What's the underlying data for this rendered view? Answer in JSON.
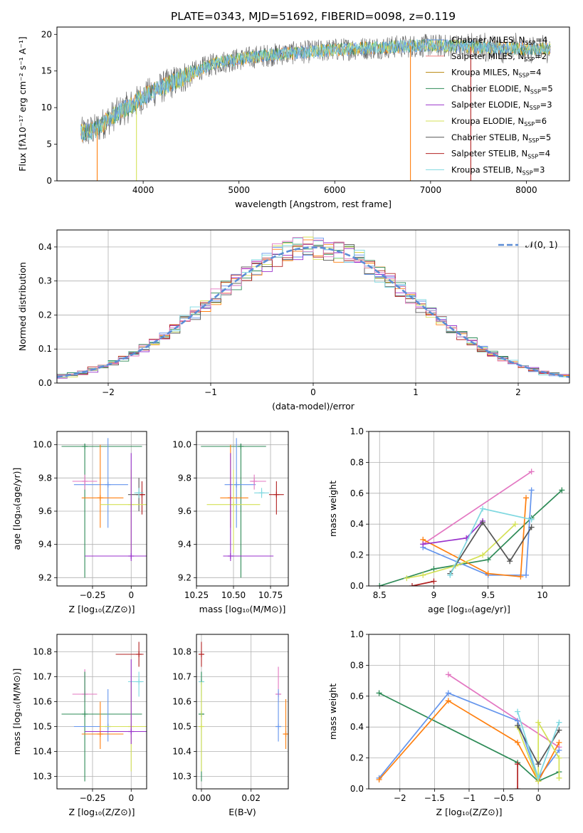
{
  "figure": {
    "title": "PLATE=0343, MJD=51692, FIBERID=0098, z=0.119"
  },
  "colors": {
    "chabrier_miles": "#6495ed",
    "salpeter_miles": "#f08080",
    "kroupa_miles": "#b8860b",
    "chabrier_elodie": "#2e8b57",
    "salpeter_elodie": "#9932cc",
    "kroupa_elodie": "#d4e157",
    "chabrier_stelib": "#555555",
    "salpeter_stelib": "#b22222",
    "kroupa_stelib": "#7fd8e0",
    "orange": "#ff7f0e",
    "pink": "#e377c2",
    "gaussian": "#5b8dd6"
  },
  "chart_data": [
    {
      "type": "line",
      "name": "spectrum",
      "xlabel": "wavelength [Angstrom, rest frame]",
      "ylabel": "Flux [fλ10⁻¹⁷ erg cm⁻² s⁻¹ A⁻¹]",
      "xlim": [
        3100,
        8450
      ],
      "ylim": [
        0,
        21
      ],
      "xticks": [
        4000,
        5000,
        6000,
        7000,
        8000
      ],
      "yticks": [
        0,
        5,
        10,
        15,
        20
      ],
      "grid": false,
      "legend_position": "top-right",
      "legend": [
        "Chabrier MILES, N_SSP=4",
        "Salpeter MILES, N_SSP=2",
        "Kroupa MILES, N_SSP=4",
        "Chabrier ELODIE, N_SSP=5",
        "Salpeter ELODIE, N_SSP=3",
        "Kroupa ELODIE, N_SSP=6",
        "Chabrier STELIB, N_SSP=5",
        "Salpeter STELIB, N_SSP=4",
        "Kroupa STELIB, N_SSP=3"
      ],
      "continuum": {
        "x": [
          3350,
          3500,
          3700,
          3900,
          4000,
          4200,
          4400,
          4600,
          4800,
          5000,
          5200,
          5500,
          5800,
          6000,
          6300,
          6600,
          7000,
          7400,
          7800,
          8200
        ],
        "y": [
          6.5,
          7.0,
          9.0,
          10.5,
          11.5,
          12.8,
          14.0,
          15.3,
          16.2,
          16.6,
          17.0,
          17.4,
          17.7,
          17.9,
          18.1,
          18.3,
          18.5,
          18.3,
          18.1,
          18.0
        ]
      },
      "spikes": [
        {
          "x": 3520,
          "y": 0
        },
        {
          "x": 3930,
          "y": 0
        },
        {
          "x": 6790,
          "y": 0
        },
        {
          "x": 7420,
          "y": 0
        }
      ]
    },
    {
      "type": "line",
      "name": "residual-distribution",
      "xlabel": "(data-model)/error",
      "ylabel": "Normed distribution",
      "xlim": [
        -2.5,
        2.5
      ],
      "ylim": [
        0,
        0.45
      ],
      "xticks": [
        -2,
        -1,
        0,
        1,
        2
      ],
      "yticks": [
        0.0,
        0.1,
        0.2,
        0.3,
        0.4
      ],
      "grid": true,
      "legend_position": "top-right",
      "legend": [
        "𝒩(0, 1)"
      ],
      "bin_width": 0.1,
      "bin_start": -2.5
    },
    {
      "type": "scatter",
      "name": "age-vs-Z",
      "xlabel": "Z [log₁₀(Z/Z⊙)]",
      "ylabel": "age  [log₁₀(age/yr)]",
      "xlim": [
        -0.48,
        0.1
      ],
      "ylim": [
        9.15,
        10.08
      ],
      "xticks": [
        -0.25,
        0.0
      ],
      "yticks": [
        9.2,
        9.4,
        9.6,
        9.8,
        10.0
      ],
      "grid": true,
      "points": [
        {
          "c": "chabrier_elodie",
          "x": -0.3,
          "y": 9.99,
          "xe": [
            -0.45,
            0.07
          ],
          "ye": [
            9.2,
            10.0
          ]
        },
        {
          "c": "chabrier_miles",
          "x": -0.15,
          "y": 9.76,
          "xe": [
            -0.37,
            -0.02
          ],
          "ye": [
            9.5,
            10.04
          ]
        },
        {
          "c": "pink",
          "x": -0.3,
          "y": 9.78,
          "xe": [
            -0.38,
            -0.22
          ],
          "ye": [
            9.73,
            9.82
          ]
        },
        {
          "c": "orange",
          "x": -0.2,
          "y": 9.68,
          "xe": [
            -0.32,
            -0.05
          ],
          "ye": [
            9.5,
            10.0
          ]
        },
        {
          "c": "chabrier_stelib",
          "x": 0.05,
          "y": 9.7,
          "xe": [
            -0.02,
            0.09
          ],
          "ye": [
            9.6,
            9.8
          ]
        },
        {
          "c": "salpeter_stelib",
          "x": 0.07,
          "y": 9.7,
          "xe": [
            0.05,
            0.09
          ],
          "ye": [
            9.58,
            9.78
          ]
        },
        {
          "c": "kroupa_elodie",
          "x": 0.0,
          "y": 9.64,
          "xe": [
            -0.2,
            0.1
          ],
          "ye": [
            9.35,
            9.85
          ]
        },
        {
          "c": "salpeter_elodie",
          "x": 0.0,
          "y": 9.33,
          "xe": [
            -0.3,
            0.1
          ],
          "ye": [
            9.3,
            9.95
          ]
        },
        {
          "c": "kroupa_stelib",
          "x": 0.05,
          "y": 9.71,
          "xe": [
            0.02,
            0.08
          ],
          "ye": [
            9.68,
            9.74
          ]
        }
      ]
    },
    {
      "type": "scatter",
      "name": "age-vs-mass",
      "xlabel": "mass [log₁₀(M/M⊙)]",
      "ylabel": "",
      "xlim": [
        10.25,
        10.87
      ],
      "ylim": [
        9.15,
        10.08
      ],
      "xticks": [
        10.25,
        10.5,
        10.75
      ],
      "xticklabels": [
        "10.25",
        "10.50",
        "10.75"
      ],
      "yticks": [
        9.2,
        9.4,
        9.6,
        9.8,
        10.0
      ],
      "grid": true,
      "points": [
        {
          "c": "chabrier_elodie",
          "x": 10.55,
          "y": 9.99,
          "xe": [
            10.28,
            10.72
          ],
          "ye": [
            9.2,
            10.0
          ]
        },
        {
          "c": "chabrier_miles",
          "x": 10.52,
          "y": 9.76,
          "xe": [
            10.44,
            10.65
          ],
          "ye": [
            9.5,
            10.04
          ]
        },
        {
          "c": "pink",
          "x": 10.64,
          "y": 9.78,
          "xe": [
            10.61,
            10.72
          ],
          "ye": [
            9.73,
            9.82
          ]
        },
        {
          "c": "orange",
          "x": 10.48,
          "y": 9.68,
          "xe": [
            10.41,
            10.6
          ],
          "ye": [
            9.5,
            10.0
          ]
        },
        {
          "c": "kroupa_elodie",
          "x": 10.5,
          "y": 9.64,
          "xe": [
            10.32,
            10.68
          ],
          "ye": [
            9.35,
            9.85
          ]
        },
        {
          "c": "salpeter_elodie",
          "x": 10.48,
          "y": 9.33,
          "xe": [
            10.43,
            10.77
          ],
          "ye": [
            9.3,
            9.95
          ]
        },
        {
          "c": "kroupa_stelib",
          "x": 10.69,
          "y": 9.71,
          "xe": [
            10.64,
            10.74
          ],
          "ye": [
            9.68,
            9.74
          ]
        },
        {
          "c": "salpeter_stelib",
          "x": 10.79,
          "y": 9.7,
          "xe": [
            10.74,
            10.84
          ],
          "ye": [
            9.58,
            9.78
          ]
        }
      ]
    },
    {
      "type": "line",
      "name": "mass-weight-vs-age",
      "xlabel": "age  [log₁₀(age/yr)]",
      "ylabel": "mass weight",
      "xlim": [
        8.4,
        10.25
      ],
      "ylim": [
        0,
        1.0
      ],
      "xticks": [
        8.5,
        9.0,
        9.5,
        10.0
      ],
      "yticks": [
        0.0,
        0.2,
        0.4,
        0.6,
        0.8,
        1.0
      ],
      "grid": true,
      "series": [
        {
          "c": "pink",
          "x": [
            8.9,
            9.9
          ],
          "y": [
            0.27,
            0.74
          ]
        },
        {
          "c": "chabrier_elodie",
          "x": [
            8.5,
            9.0,
            9.5,
            9.9,
            10.18
          ],
          "y": [
            0.0,
            0.11,
            0.17,
            0.44,
            0.62
          ]
        },
        {
          "c": "chabrier_miles",
          "x": [
            8.9,
            9.5,
            9.85,
            9.9
          ],
          "y": [
            0.25,
            0.07,
            0.07,
            0.62
          ]
        },
        {
          "c": "orange",
          "x": [
            8.9,
            9.5,
            9.8,
            9.85
          ],
          "y": [
            0.3,
            0.08,
            0.06,
            0.57
          ]
        },
        {
          "c": "salpeter_elodie",
          "x": [
            8.9,
            9.3,
            9.45
          ],
          "y": [
            0.27,
            0.31,
            0.42
          ]
        },
        {
          "c": "kroupa_elodie",
          "x": [
            8.75,
            8.9,
            9.2,
            9.45,
            9.75
          ],
          "y": [
            0.05,
            0.07,
            0.13,
            0.2,
            0.4
          ]
        },
        {
          "c": "chabrier_stelib",
          "x": [
            9.15,
            9.45,
            9.7,
            9.9
          ],
          "y": [
            0.08,
            0.41,
            0.16,
            0.38
          ]
        },
        {
          "c": "kroupa_stelib",
          "x": [
            9.15,
            9.45,
            9.9
          ],
          "y": [
            0.07,
            0.5,
            0.43
          ]
        },
        {
          "c": "salpeter_stelib",
          "x": [
            8.8,
            9.0
          ],
          "y": [
            0.0,
            0.03
          ]
        }
      ]
    },
    {
      "type": "scatter",
      "name": "mass-vs-Z",
      "xlabel": "Z [log₁₀(Z/Z⊙)]",
      "ylabel": "mass [log₁₀(M/M⊙)]",
      "xlim": [
        -0.48,
        0.1
      ],
      "ylim": [
        10.25,
        10.87
      ],
      "xticks": [
        -0.25,
        0.0
      ],
      "yticks": [
        10.3,
        10.4,
        10.5,
        10.6,
        10.7,
        10.8
      ],
      "grid": true,
      "points": [
        {
          "c": "salpeter_stelib",
          "x": 0.05,
          "y": 10.79,
          "xe": [
            -0.1,
            0.08
          ],
          "ye": [
            10.74,
            10.84
          ]
        },
        {
          "c": "pink",
          "x": -0.3,
          "y": 10.63,
          "xe": [
            -0.38,
            -0.22
          ],
          "ye": [
            10.6,
            10.73
          ]
        },
        {
          "c": "kroupa_stelib",
          "x": 0.05,
          "y": 10.68,
          "xe": [
            -0.02,
            0.08
          ],
          "ye": [
            10.62,
            10.72
          ]
        },
        {
          "c": "chabrier_elodie",
          "x": -0.3,
          "y": 10.55,
          "xe": [
            -0.45,
            0.07
          ],
          "ye": [
            10.28,
            10.72
          ]
        },
        {
          "c": "chabrier_miles",
          "x": -0.15,
          "y": 10.5,
          "xe": [
            -0.37,
            -0.02
          ],
          "ye": [
            10.44,
            10.65
          ]
        },
        {
          "c": "orange",
          "x": -0.2,
          "y": 10.47,
          "xe": [
            -0.32,
            -0.05
          ],
          "ye": [
            10.41,
            10.6
          ]
        },
        {
          "c": "kroupa_elodie",
          "x": 0.0,
          "y": 10.5,
          "xe": [
            -0.2,
            0.1
          ],
          "ye": [
            10.32,
            10.68
          ]
        },
        {
          "c": "salpeter_elodie",
          "x": 0.0,
          "y": 10.48,
          "xe": [
            -0.3,
            0.1
          ],
          "ye": [
            10.43,
            10.77
          ]
        }
      ]
    },
    {
      "type": "scatter",
      "name": "mass-vs-ebv",
      "xlabel": "E(B-V)",
      "ylabel": "",
      "xlim": [
        -0.002,
        0.035
      ],
      "ylim": [
        10.25,
        10.87
      ],
      "xticks": [
        0.0,
        0.02
      ],
      "xticklabels": [
        "0.00",
        "0.02"
      ],
      "yticks": [
        10.3,
        10.4,
        10.5,
        10.6,
        10.7,
        10.8
      ],
      "grid": true,
      "points": [
        {
          "c": "salpeter_stelib",
          "x": 0.0,
          "y": 10.79,
          "ye": [
            10.74,
            10.84
          ]
        },
        {
          "c": "kroupa_stelib",
          "x": 0.0,
          "y": 10.68,
          "ye": [
            10.62,
            10.72
          ]
        },
        {
          "c": "chabrier_elodie",
          "x": 0.0,
          "y": 10.55,
          "ye": [
            10.28,
            10.72
          ]
        },
        {
          "c": "kroupa_elodie",
          "x": 0.0,
          "y": 10.5,
          "ye": [
            10.32,
            10.68
          ]
        },
        {
          "c": "pink",
          "x": 0.031,
          "y": 10.63,
          "ye": [
            10.6,
            10.74
          ]
        },
        {
          "c": "chabrier_miles",
          "x": 0.031,
          "y": 10.5,
          "ye": [
            10.44,
            10.65
          ]
        },
        {
          "c": "orange",
          "x": 0.034,
          "y": 10.47,
          "ye": [
            10.41,
            10.61
          ]
        }
      ]
    },
    {
      "type": "line",
      "name": "mass-weight-vs-Z",
      "xlabel": "Z [log₁₀(Z/Z⊙)]",
      "ylabel": "mass weight",
      "xlim": [
        -2.45,
        0.45
      ],
      "ylim": [
        0,
        1.0
      ],
      "xticks": [
        -2.0,
        -1.5,
        -1.0,
        -0.5,
        0.0
      ],
      "yticks": [
        0.0,
        0.2,
        0.4,
        0.6,
        0.8,
        1.0
      ],
      "grid": true,
      "series": [
        {
          "c": "pink",
          "x": [
            -1.3,
            0.3
          ],
          "y": [
            0.74,
            0.27
          ]
        },
        {
          "c": "chabrier_elodie",
          "x": [
            -2.3,
            -0.3,
            0.0,
            0.3
          ],
          "y": [
            0.62,
            0.17,
            0.05,
            0.11
          ]
        },
        {
          "c": "chabrier_miles",
          "x": [
            -2.3,
            -1.3,
            -0.3,
            0.0,
            0.3
          ],
          "y": [
            0.07,
            0.62,
            0.44,
            0.07,
            0.25
          ]
        },
        {
          "c": "orange",
          "x": [
            -2.3,
            -1.3,
            -0.3,
            0.0,
            0.3
          ],
          "y": [
            0.06,
            0.57,
            0.3,
            0.05,
            0.3
          ]
        },
        {
          "c": "kroupa_elodie",
          "x": [
            -0.3,
            0.0,
            0.0,
            0.3,
            0.3
          ],
          "y": [
            0.4,
            0.05,
            0.43,
            0.2,
            0.07
          ]
        },
        {
          "c": "chabrier_stelib",
          "x": [
            -0.3,
            0.0,
            0.3
          ],
          "y": [
            0.41,
            0.16,
            0.38
          ]
        },
        {
          "c": "kroupa_stelib",
          "x": [
            -0.3,
            0.0,
            0.3
          ],
          "y": [
            0.5,
            0.07,
            0.43
          ]
        },
        {
          "c": "salpeter_stelib",
          "x": [
            -0.3,
            -0.3
          ],
          "y": [
            0.0,
            0.16
          ]
        }
      ]
    }
  ]
}
